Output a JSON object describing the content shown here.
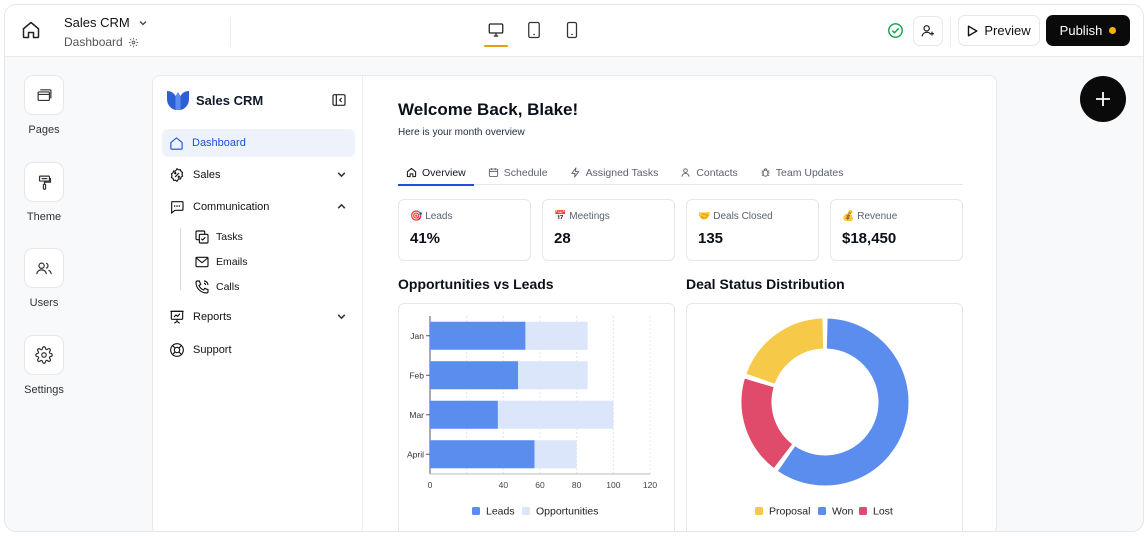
{
  "topbar": {
    "project_name": "Sales CRM",
    "page_name": "Dashboard",
    "preview_label": "Preview",
    "publish_label": "Publish"
  },
  "rail": {
    "items": [
      {
        "label": "Pages",
        "icon": "pages-icon"
      },
      {
        "label": "Theme",
        "icon": "paint-roller-icon"
      },
      {
        "label": "Users",
        "icon": "users-icon"
      },
      {
        "label": "Settings",
        "icon": "gear-icon"
      }
    ]
  },
  "sidebar": {
    "brand": "Sales CRM",
    "items": [
      {
        "label": "Dashboard"
      },
      {
        "label": "Sales"
      },
      {
        "label": "Communication"
      },
      {
        "label": "Reports"
      },
      {
        "label": "Support"
      }
    ],
    "sub_items": [
      {
        "label": "Tasks"
      },
      {
        "label": "Emails"
      },
      {
        "label": "Calls"
      }
    ]
  },
  "main": {
    "welcome": "Welcome Back, Blake!",
    "subtitle": "Here is your month overview",
    "tabs": [
      {
        "label": "Overview"
      },
      {
        "label": "Schedule"
      },
      {
        "label": "Assigned Tasks"
      },
      {
        "label": "Contacts"
      },
      {
        "label": "Team Updates"
      }
    ],
    "kpis": [
      {
        "emoji": "🎯",
        "label": "Leads",
        "value": "41%"
      },
      {
        "emoji": "📅",
        "label": "Meetings",
        "value": "28"
      },
      {
        "emoji": "🤝",
        "label": "Deals Closed",
        "value": "135"
      },
      {
        "emoji": "💰",
        "label": "Revenue",
        "value": "$18,450"
      }
    ],
    "bar_title": "Opportunities vs Leads",
    "donut_title": "Deal Status Distribution"
  },
  "colors": {
    "accent": "#1d4ed8",
    "leads": "#5b8def",
    "opportunities": "#dce6fb",
    "proposal": "#f7c948",
    "won": "#5b8def",
    "lost": "#e04a6b"
  },
  "chart_data": [
    {
      "type": "bar",
      "orientation": "horizontal",
      "title": "Opportunities vs Leads",
      "categories": [
        "Jan",
        "Feb",
        "Mar",
        "April"
      ],
      "series": [
        {
          "name": "Leads",
          "values": [
            52,
            48,
            37,
            57
          ]
        },
        {
          "name": "Opportunities",
          "values": [
            86,
            86,
            100,
            80
          ]
        }
      ],
      "xlim": [
        0,
        120
      ],
      "xticks": [
        0,
        40,
        60,
        80,
        100,
        120
      ],
      "grid": true,
      "legend": "bottom"
    },
    {
      "type": "pie",
      "variant": "donut",
      "title": "Deal Status Distribution",
      "categories": [
        "Proposal",
        "Won",
        "Lost"
      ],
      "values": [
        20,
        60,
        20
      ],
      "legend": "bottom"
    }
  ]
}
